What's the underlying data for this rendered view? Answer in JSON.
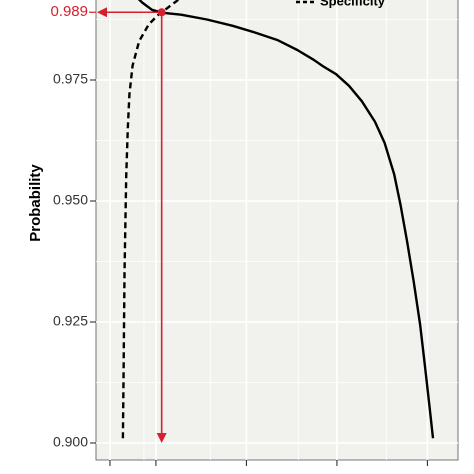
{
  "chart_data": {
    "type": "line",
    "xlabel": "",
    "ylabel": "Probability",
    "ylim": [
      0.9,
      0.992
    ],
    "y_ticks": [
      0.9,
      0.925,
      0.95,
      0.975
    ],
    "y_tick_labels": [
      "0.900",
      "0.925",
      "0.950",
      "0.975"
    ],
    "xlim": [
      0,
      1
    ],
    "x_tick_positions": [
      0.033,
      0.16,
      0.41,
      0.66,
      0.91
    ],
    "grid": true,
    "legend_position": "top-right",
    "series": [
      {
        "name": "",
        "style": "solid",
        "x": [
          0.0,
          0.08,
          0.1,
          0.13,
          0.16,
          0.22,
          0.3,
          0.38,
          0.45,
          0.52,
          0.58,
          0.63,
          0.66,
          0.7,
          0.74,
          0.78,
          0.82,
          0.85,
          0.88,
          0.9,
          0.92,
          0.94,
          0.96,
          0.975,
          0.99,
          1.0
        ],
        "y": [
          0.9925,
          0.9923,
          0.991,
          0.9895,
          0.9889,
          0.9885,
          0.9875,
          0.9862,
          0.9848,
          0.9832,
          0.9812,
          0.9792,
          0.9778,
          0.9762,
          0.9738,
          0.9706,
          0.9664,
          0.962,
          0.9555,
          0.949,
          0.9415,
          0.9335,
          0.9245,
          0.916,
          0.907,
          0.901
        ]
      },
      {
        "name": "Specificity",
        "style": "dashed",
        "x": [
          0.04,
          0.042,
          0.045,
          0.05,
          0.055,
          0.06,
          0.07,
          0.09,
          0.12,
          0.15,
          0.19,
          0.23
        ],
        "y": [
          0.901,
          0.915,
          0.935,
          0.955,
          0.965,
          0.972,
          0.978,
          0.983,
          0.9865,
          0.9885,
          0.9905,
          0.9925
        ]
      }
    ],
    "annotation": {
      "label": "0.989",
      "x": 0.16,
      "y": 0.989,
      "color": "#d6202f"
    },
    "colors": {
      "line": "#000000",
      "accent": "#d6202f",
      "panel": "#f1f1ee",
      "grid": "#ffffff"
    }
  }
}
